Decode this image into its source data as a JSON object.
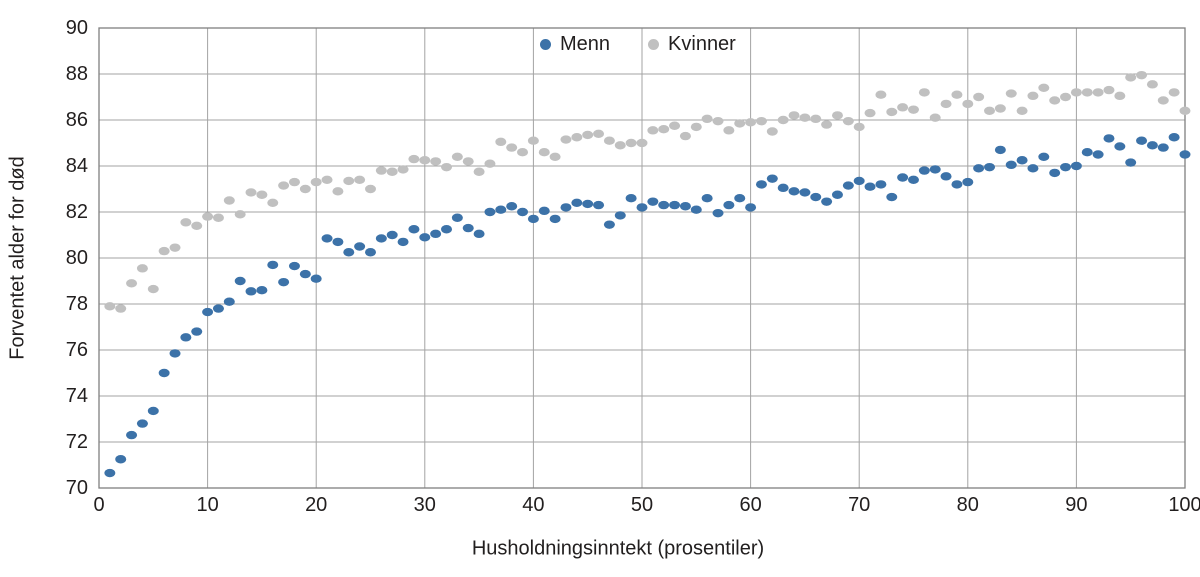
{
  "figure": {
    "background": "#ffffff",
    "text_color": "#221f1f",
    "grid_color": "#a3a3a3",
    "border_color": "#7f7f7f"
  },
  "chart_data": {
    "type": "scatter",
    "title": "",
    "xlabel": "Husholdningsinntekt (prosentiler)",
    "ylabel": "Forventet alder for død",
    "xlim": [
      0,
      100
    ],
    "ylim": [
      70,
      90
    ],
    "x_ticks": [
      0,
      10,
      20,
      30,
      40,
      50,
      60,
      70,
      80,
      90,
      100
    ],
    "y_ticks": [
      70,
      72,
      74,
      76,
      78,
      80,
      82,
      84,
      86,
      88,
      90
    ],
    "grid": true,
    "legend_position": "top-center",
    "x": [
      1,
      2,
      3,
      4,
      5,
      6,
      7,
      8,
      9,
      10,
      11,
      12,
      13,
      14,
      15,
      16,
      17,
      18,
      19,
      20,
      21,
      22,
      23,
      24,
      25,
      26,
      27,
      28,
      29,
      30,
      31,
      32,
      33,
      34,
      35,
      36,
      37,
      38,
      39,
      40,
      41,
      42,
      43,
      44,
      45,
      46,
      47,
      48,
      49,
      50,
      51,
      52,
      53,
      54,
      55,
      56,
      57,
      58,
      59,
      60,
      61,
      62,
      63,
      64,
      65,
      66,
      67,
      68,
      69,
      70,
      71,
      72,
      73,
      74,
      75,
      76,
      77,
      78,
      79,
      80,
      81,
      82,
      83,
      84,
      85,
      86,
      87,
      88,
      89,
      90,
      91,
      92,
      93,
      94,
      95,
      96,
      97,
      98,
      99,
      100
    ],
    "series": [
      {
        "name": "Menn",
        "color": "#3C72A8",
        "values": [
          70.65,
          71.25,
          72.3,
          72.8,
          73.35,
          75.0,
          75.85,
          76.55,
          76.8,
          77.65,
          77.8,
          78.1,
          79.0,
          78.55,
          78.6,
          79.7,
          78.95,
          79.65,
          79.3,
          79.1,
          80.85,
          80.7,
          80.25,
          80.5,
          80.25,
          80.85,
          81.0,
          80.7,
          81.25,
          80.9,
          81.05,
          81.25,
          81.75,
          81.3,
          81.05,
          82.0,
          82.1,
          82.25,
          82.0,
          81.7,
          82.05,
          81.7,
          82.2,
          82.4,
          82.35,
          82.3,
          81.45,
          81.85,
          82.6,
          82.2,
          82.45,
          82.3,
          82.3,
          82.25,
          82.1,
          82.6,
          81.95,
          82.3,
          82.6,
          82.2,
          83.2,
          83.45,
          83.05,
          82.9,
          82.85,
          82.65,
          82.45,
          82.75,
          83.15,
          83.35,
          83.1,
          83.2,
          82.65,
          83.5,
          83.4,
          83.8,
          83.85,
          83.55,
          83.2,
          83.3,
          83.9,
          83.95,
          84.7,
          84.05,
          84.25,
          83.9,
          84.4,
          83.7,
          83.95,
          84.0,
          84.6,
          84.5,
          85.2,
          84.85,
          84.15,
          85.1,
          84.9,
          84.8,
          85.25,
          84.5
        ]
      },
      {
        "name": "Kvinner",
        "color": "#C0C0C0",
        "values": [
          77.9,
          77.8,
          78.9,
          79.55,
          78.65,
          80.3,
          80.45,
          81.55,
          81.4,
          81.8,
          81.75,
          82.5,
          81.9,
          82.85,
          82.75,
          82.4,
          83.15,
          83.3,
          83.0,
          83.3,
          83.4,
          82.9,
          83.35,
          83.4,
          83.0,
          83.8,
          83.75,
          83.85,
          84.3,
          84.25,
          84.2,
          83.95,
          84.4,
          84.2,
          83.75,
          84.1,
          85.05,
          84.8,
          84.6,
          85.1,
          84.6,
          84.4,
          85.15,
          85.25,
          85.35,
          85.4,
          85.1,
          84.9,
          85.0,
          85.0,
          85.55,
          85.6,
          85.75,
          85.3,
          85.7,
          86.05,
          85.95,
          85.55,
          85.85,
          85.9,
          85.95,
          85.5,
          86.0,
          86.2,
          86.1,
          86.05,
          85.8,
          86.2,
          85.95,
          85.7,
          86.3,
          87.1,
          86.35,
          86.55,
          86.45,
          87.2,
          86.1,
          86.7,
          87.1,
          86.7,
          87.0,
          86.4,
          86.5,
          87.15,
          86.4,
          87.05,
          87.4,
          86.85,
          87.0,
          87.2,
          87.2,
          87.2,
          87.3,
          87.05,
          87.85,
          87.95,
          87.55,
          86.85,
          87.2,
          86.4
        ]
      }
    ]
  }
}
